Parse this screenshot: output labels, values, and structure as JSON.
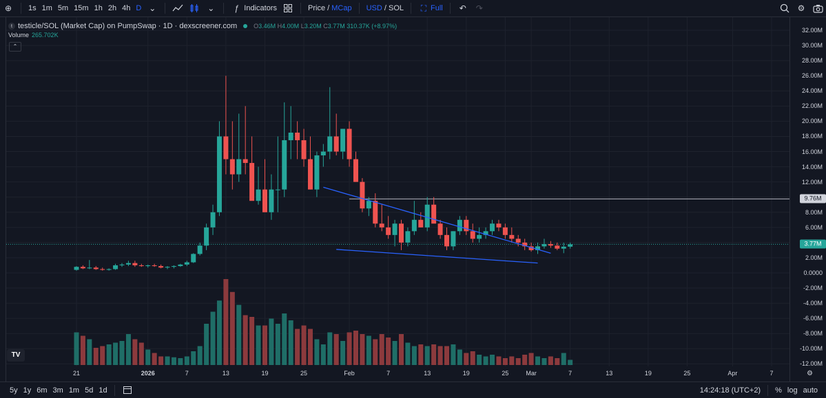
{
  "toolbar": {
    "timeframes": [
      "1s",
      "1m",
      "5m",
      "15m",
      "1h",
      "2h",
      "4h",
      "D"
    ],
    "active_timeframe": "D",
    "indicators_label": "Indicators",
    "price_label": "Price",
    "mcap_label": "MCap",
    "usd_label": "USD",
    "sol_label": "SOL",
    "full_label": "Full"
  },
  "legend": {
    "title": "testicle/SOL (Market Cap) on PumpSwap · 1D · dexscreener.com",
    "o_key": "O",
    "o_val": "3.46M",
    "h_key": "H",
    "h_val": "4.00M",
    "l_key": "L",
    "l_val": "3.20M",
    "c_val": "3.77M",
    "change": "310.37K (+8.97%)",
    "volume_label": "Volume",
    "volume_value": "265.702K"
  },
  "bottom": {
    "ranges": [
      "5y",
      "1y",
      "6m",
      "3m",
      "1m",
      "5d",
      "1d"
    ],
    "time": "14:24:18 (UTC+2)",
    "percent": "%",
    "log": "log",
    "auto": "auto"
  },
  "colors": {
    "up": "#26a69a",
    "down": "#ef5350",
    "background": "#131722",
    "trendline": "#2962ff",
    "hline": "#b2b5be"
  },
  "chart_data": {
    "type": "candlestick",
    "y_ticks": [
      "32.00M",
      "30.00M",
      "28.00M",
      "26.00M",
      "24.00M",
      "22.00M",
      "20.00M",
      "18.00M",
      "16.00M",
      "14.00M",
      "12.00M",
      "10.00M",
      "8.00M",
      "6.00M",
      "4.00M",
      "2.00M",
      "0.0000",
      "-2.00M",
      "-4.00M",
      "-6.00M",
      "-8.00M",
      "-10.00M",
      "-12.00M"
    ],
    "y_tick_values": [
      32,
      30,
      28,
      26,
      24,
      22,
      20,
      18,
      16,
      14,
      12,
      10,
      8,
      6,
      4,
      2,
      0,
      -2,
      -4,
      -6,
      -8,
      -10,
      -12
    ],
    "ylim_millions": [
      -12.8,
      33.2
    ],
    "x_ticks": [
      {
        "label": "21",
        "day": 0
      },
      {
        "label": "2026",
        "day": 11,
        "bold": true
      },
      {
        "label": "7",
        "day": 17
      },
      {
        "label": "13",
        "day": 23
      },
      {
        "label": "19",
        "day": 29
      },
      {
        "label": "25",
        "day": 35
      },
      {
        "label": "Feb",
        "day": 42
      },
      {
        "label": "7",
        "day": 48
      },
      {
        "label": "13",
        "day": 54
      },
      {
        "label": "19",
        "day": 60
      },
      {
        "label": "25",
        "day": 66
      },
      {
        "label": "Mar",
        "day": 70
      },
      {
        "label": "7",
        "day": 76
      },
      {
        "label": "13",
        "day": 82
      },
      {
        "label": "19",
        "day": 88
      },
      {
        "label": "25",
        "day": 94
      },
      {
        "label": "Apr",
        "day": 101
      },
      {
        "label": "7",
        "day": 107
      }
    ],
    "candles_millions": [
      [
        0.4,
        0.9,
        0.3,
        0.8
      ],
      [
        0.8,
        1.0,
        0.5,
        0.6
      ],
      [
        0.6,
        1.7,
        0.5,
        0.7
      ],
      [
        0.7,
        0.9,
        0.4,
        0.5
      ],
      [
        0.5,
        0.7,
        0.3,
        0.4
      ],
      [
        0.4,
        0.6,
        0.3,
        0.5
      ],
      [
        0.5,
        1.2,
        0.4,
        1.0
      ],
      [
        1.0,
        1.3,
        0.8,
        1.1
      ],
      [
        1.1,
        1.6,
        0.9,
        1.3
      ],
      [
        1.3,
        1.6,
        0.8,
        1.0
      ],
      [
        1.0,
        1.2,
        0.8,
        0.9
      ],
      [
        0.9,
        1.1,
        0.7,
        1.0
      ],
      [
        1.0,
        1.2,
        0.8,
        0.9
      ],
      [
        0.9,
        1.1,
        0.6,
        0.7
      ],
      [
        0.7,
        0.9,
        0.5,
        0.8
      ],
      [
        0.8,
        1.0,
        0.6,
        0.9
      ],
      [
        0.9,
        1.2,
        0.8,
        1.1
      ],
      [
        1.1,
        1.6,
        0.9,
        1.4
      ],
      [
        1.4,
        2.6,
        1.3,
        2.5
      ],
      [
        2.5,
        4.0,
        2.3,
        3.6
      ],
      [
        3.6,
        6.5,
        3.0,
        6.0
      ],
      [
        6.0,
        9.0,
        5.0,
        8.0
      ],
      [
        8.0,
        20.0,
        7.5,
        18.0
      ],
      [
        18.0,
        26.0,
        13.0,
        15.0
      ],
      [
        15.0,
        20.0,
        11.0,
        13.0
      ],
      [
        13.0,
        21.0,
        12.0,
        15.0
      ],
      [
        15.0,
        22.0,
        13.0,
        14.5
      ],
      [
        14.5,
        18.0,
        10.0,
        9.5
      ],
      [
        9.5,
        14.0,
        9.0,
        11.0
      ],
      [
        11.0,
        15.0,
        8.0,
        8.0
      ],
      [
        8.0,
        13.0,
        7.0,
        11.0
      ],
      [
        11.0,
        18.0,
        8.0,
        11.0
      ],
      [
        11.0,
        22.5,
        10.0,
        17.5
      ],
      [
        17.5,
        22.0,
        15.0,
        18.5
      ],
      [
        18.5,
        20.0,
        15.0,
        17.5
      ],
      [
        17.5,
        19.0,
        14.0,
        15.0
      ],
      [
        15.0,
        18.0,
        11.0,
        11.0
      ],
      [
        11.0,
        16.0,
        10.0,
        15.5
      ],
      [
        15.5,
        17.0,
        14.0,
        16.0
      ],
      [
        16.0,
        24.5,
        15.0,
        18.0
      ],
      [
        18.0,
        21.0,
        15.5,
        16.0
      ],
      [
        16.0,
        19.0,
        15.0,
        19.0
      ],
      [
        19.0,
        20.0,
        14.0,
        15.0
      ],
      [
        15.0,
        16.0,
        12.0,
        12.0
      ],
      [
        12.0,
        12.5,
        8.0,
        8.5
      ],
      [
        8.5,
        10.0,
        7.5,
        9.5
      ],
      [
        9.5,
        10.5,
        6.0,
        6.5
      ],
      [
        6.5,
        9.0,
        5.5,
        6.0
      ],
      [
        6.0,
        7.5,
        4.5,
        5.0
      ],
      [
        5.0,
        7.0,
        3.5,
        6.5
      ],
      [
        6.5,
        7.0,
        3.0,
        4.0
      ],
      [
        4.0,
        6.0,
        3.5,
        5.5
      ],
      [
        5.5,
        9.5,
        5.0,
        7.0
      ],
      [
        7.0,
        8.0,
        6.0,
        6.0
      ],
      [
        6.0,
        10.0,
        5.5,
        9.0
      ],
      [
        9.0,
        10.0,
        7.0,
        6.5
      ],
      [
        6.5,
        7.0,
        4.5,
        5.0
      ],
      [
        5.0,
        6.0,
        3.0,
        3.5
      ],
      [
        3.5,
        5.5,
        3.0,
        5.5
      ],
      [
        5.5,
        7.5,
        5.0,
        7.0
      ],
      [
        7.0,
        7.5,
        5.0,
        5.5
      ],
      [
        5.5,
        6.5,
        4.0,
        4.5
      ],
      [
        4.5,
        6.0,
        4.0,
        5.0
      ],
      [
        5.0,
        6.0,
        4.5,
        5.5
      ],
      [
        5.5,
        7.0,
        5.0,
        6.5
      ],
      [
        6.5,
        7.0,
        5.5,
        6.0
      ],
      [
        6.0,
        6.5,
        4.5,
        5.0
      ],
      [
        5.0,
        6.0,
        4.0,
        4.5
      ],
      [
        4.5,
        5.0,
        3.5,
        4.0
      ],
      [
        4.0,
        4.5,
        3.0,
        3.5
      ],
      [
        3.5,
        4.0,
        2.8,
        3.0
      ],
      [
        3.0,
        4.0,
        2.5,
        3.5
      ],
      [
        3.5,
        4.5,
        3.2,
        3.8
      ],
      [
        3.8,
        4.2,
        3.3,
        3.6
      ],
      [
        3.6,
        4.0,
        3.0,
        3.2
      ],
      [
        3.2,
        4.0,
        2.6,
        3.46
      ],
      [
        3.46,
        4.0,
        3.2,
        3.77
      ]
    ],
    "volumes": [
      38,
      34,
      30,
      20,
      22,
      24,
      26,
      28,
      36,
      30,
      26,
      18,
      14,
      10,
      10,
      9,
      8,
      10,
      16,
      22,
      48,
      62,
      75,
      100,
      85,
      70,
      58,
      56,
      46,
      46,
      54,
      48,
      60,
      52,
      42,
      46,
      42,
      30,
      24,
      38,
      36,
      28,
      38,
      40,
      36,
      34,
      30,
      36,
      32,
      28,
      36,
      26,
      22,
      24,
      22,
      24,
      22,
      22,
      24,
      18,
      14,
      16,
      12,
      10,
      12,
      10,
      8,
      10,
      8,
      12,
      14,
      10,
      8,
      10,
      8,
      14,
      6
    ],
    "horizontal_line": {
      "value_millions": 9.76,
      "label": "9.76M",
      "start_day": 42
    },
    "current_price": {
      "value_millions": 3.77,
      "label": "3.77M"
    },
    "upper_trendline": {
      "from": [
        38,
        11.3
      ],
      "to": [
        73,
        2.6
      ]
    },
    "lower_trendline": {
      "from": [
        40,
        3.1
      ],
      "to": [
        71,
        1.3
      ]
    }
  }
}
